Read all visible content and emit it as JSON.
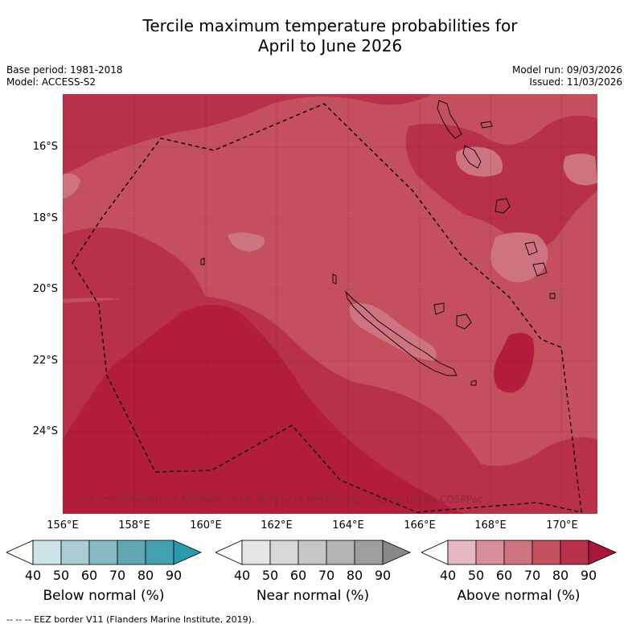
{
  "title_line1": "Tercile maximum temperature probabilities for",
  "title_line2": "April to June 2026",
  "base_period": "Base period: 1981-2018",
  "model": "Model: ACCESS-S2",
  "model_run": "Model run: 09/03/2026",
  "issued": "Issued: 11/03/2026",
  "lat_labels": [
    "16°S",
    "18°S",
    "20°S",
    "22°S",
    "24°S"
  ],
  "lon_labels": [
    "156°E",
    "158°E",
    "160°E",
    "162°E",
    "164°E",
    "166°E",
    "168°E",
    "170°E"
  ],
  "copyright": "© Commonwealth of Australia 2026, Bureau of Meteorology, supported by COSPPac",
  "colorbars": [
    {
      "title": "Below normal (%)",
      "ticks": [
        "40",
        "50",
        "60",
        "70",
        "80",
        "90"
      ],
      "colors": [
        "#ffffff",
        "#cce4e8",
        "#a8cdd4",
        "#86b9c3",
        "#63a6b3",
        "#43a0b0",
        "#2a9aad"
      ]
    },
    {
      "title": "Near normal (%)",
      "ticks": [
        "40",
        "50",
        "60",
        "70",
        "80",
        "90"
      ],
      "colors": [
        "#ffffff",
        "#e6e6e6",
        "#d7d7d7",
        "#c6c6c6",
        "#b3b3b3",
        "#9e9e9e",
        "#888888"
      ]
    },
    {
      "title": "Above normal (%)",
      "ticks": [
        "40",
        "50",
        "60",
        "70",
        "80",
        "90"
      ],
      "colors": [
        "#ffffff",
        "#e5b8c2",
        "#d98e9c",
        "#cd7480",
        "#c4505e",
        "#b8304a",
        "#a8173a"
      ]
    }
  ],
  "eez_legend": "--  --  -- EEZ border V11 (Flanders Marine Institute, 2019).",
  "map_colors": {
    "p60_70": "#cd7480",
    "p70_80": "#c4505e",
    "p80_90": "#b8304a",
    "p90plus": "#b21d3c",
    "land": "#000000",
    "eez": "#000000"
  }
}
